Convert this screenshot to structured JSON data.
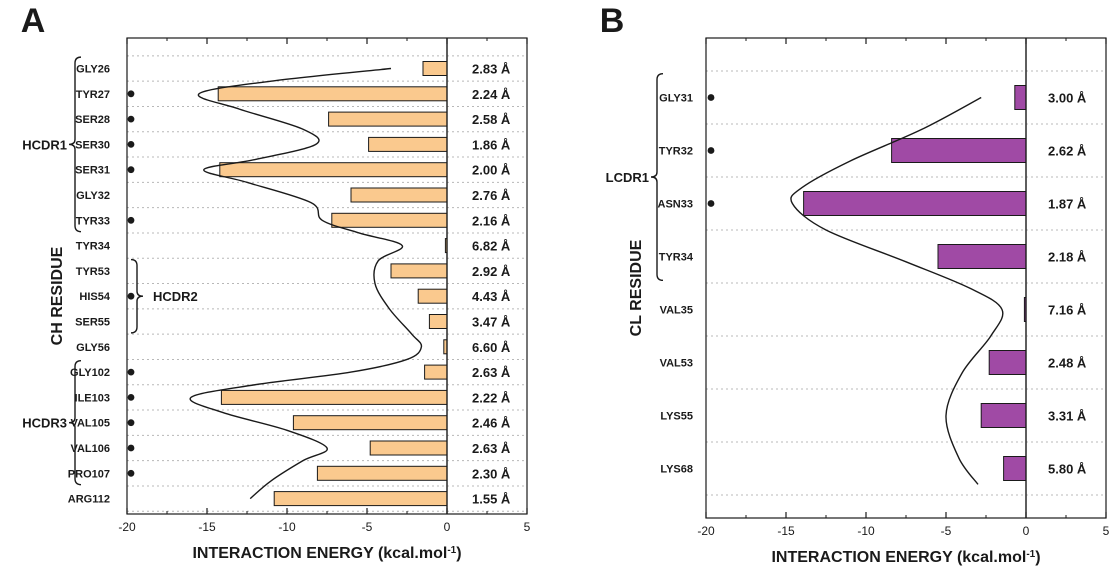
{
  "chart_data": [
    {
      "panel": "A",
      "type": "bar",
      "orientation": "horizontal",
      "xlabel": "INTERACTION ENERGY (kcal.mol",
      "xlabel_sup": "-1",
      "ylabel": "CH RESIDUE",
      "xlim": [
        -20,
        5
      ],
      "xticks": [
        "-20",
        "-15",
        "-10",
        "-5",
        "0",
        "5"
      ],
      "bar_color": "#FAC98E",
      "categories": [
        "GLY26",
        "TYR27",
        "SER28",
        "SER30",
        "SER31",
        "GLY32",
        "TYR33",
        "TYR34",
        "TYR53",
        "HIS54",
        "SER55",
        "GLY56",
        "GLY102",
        "ILE103",
        "VAL105",
        "VAL106",
        "PRO107",
        "ARG112"
      ],
      "values": [
        -1.5,
        -14.3,
        -7.4,
        -4.9,
        -14.2,
        -6.0,
        -7.2,
        -0.1,
        -3.5,
        -1.8,
        -1.1,
        -0.2,
        -1.4,
        -14.1,
        -9.6,
        -4.8,
        -8.1,
        -10.8
      ],
      "distances": [
        "2.83 Å",
        "2.24 Å",
        "2.58 Å",
        "1.86 Å",
        "2.00 Å",
        "2.76 Å",
        "2.16 Å",
        "6.82 Å",
        "2.92 Å",
        "4.43 Å",
        "3.47 Å",
        "6.60 Å",
        "2.63 Å",
        "2.22 Å",
        "2.46 Å",
        "2.63 Å",
        "2.30 Å",
        "1.55 Å"
      ],
      "marked": [
        false,
        true,
        true,
        true,
        true,
        false,
        true,
        false,
        false,
        true,
        false,
        false,
        true,
        true,
        true,
        true,
        true,
        false
      ],
      "regions": [
        {
          "label": "HCDR1",
          "from": 0,
          "to": 6,
          "side": "left"
        },
        {
          "label": "HCDR2",
          "from": 8,
          "to": 10,
          "side": "right"
        },
        {
          "label": "HCDR3",
          "from": 12,
          "to": 16,
          "side": "left"
        }
      ],
      "curve": [
        {
          "y": 0,
          "x": -3.5
        },
        {
          "y": 0.5,
          "x": -11
        },
        {
          "y": 1,
          "x": -15.5
        },
        {
          "y": 1.6,
          "x": -13
        },
        {
          "y": 2.4,
          "x": -9
        },
        {
          "y": 3,
          "x": -8.2
        },
        {
          "y": 3.6,
          "x": -12
        },
        {
          "y": 4,
          "x": -15.2
        },
        {
          "y": 4.5,
          "x": -12.5
        },
        {
          "y": 5.3,
          "x": -8.5
        },
        {
          "y": 6,
          "x": -7.8
        },
        {
          "y": 6.5,
          "x": -5.5
        },
        {
          "y": 7,
          "x": -2.8
        },
        {
          "y": 7.6,
          "x": -4.3
        },
        {
          "y": 8.5,
          "x": -4.5
        },
        {
          "y": 9.5,
          "x": -3.6
        },
        {
          "y": 10.5,
          "x": -2.2
        },
        {
          "y": 11,
          "x": -1.6
        },
        {
          "y": 11.5,
          "x": -2.5
        },
        {
          "y": 12,
          "x": -6
        },
        {
          "y": 12.5,
          "x": -12
        },
        {
          "y": 13,
          "x": -16
        },
        {
          "y": 13.6,
          "x": -14
        },
        {
          "y": 14.3,
          "x": -10
        },
        {
          "y": 15,
          "x": -7.5
        },
        {
          "y": 15.5,
          "x": -9
        },
        {
          "y": 16.3,
          "x": -11
        },
        {
          "y": 17,
          "x": -12.3
        }
      ]
    },
    {
      "panel": "B",
      "type": "bar",
      "orientation": "horizontal",
      "xlabel": "INTERACTION ENERGY (kcal.mol",
      "xlabel_sup": "-1",
      "ylabel": "CL RESIDUE",
      "xlim": [
        -20,
        5
      ],
      "xticks": [
        "-20",
        "-15",
        "-10",
        "-5",
        "0",
        "5"
      ],
      "bar_color": "#A04AA5",
      "categories": [
        "GLY31",
        "TYR32",
        "ASN33",
        "TYR34",
        "VAL35",
        "VAL53",
        "LYS55",
        "LYS68"
      ],
      "values": [
        -0.7,
        -8.4,
        -13.9,
        -5.5,
        -0.1,
        -2.3,
        -2.8,
        -1.4
      ],
      "distances": [
        "3.00 Å",
        "2.62 Å",
        "1.87 Å",
        "2.18 Å",
        "7.16 Å",
        "2.48 Å",
        "3.31 Å",
        "5.80 Å"
      ],
      "marked": [
        true,
        true,
        true,
        false,
        false,
        false,
        false,
        false
      ],
      "regions": [
        {
          "label": "LCDR1",
          "from": 0,
          "to": 3,
          "side": "left"
        }
      ],
      "curve": [
        {
          "y": 0,
          "x": -2.8
        },
        {
          "y": 0.6,
          "x": -6.5
        },
        {
          "y": 1.2,
          "x": -11
        },
        {
          "y": 1.7,
          "x": -14
        },
        {
          "y": 2,
          "x": -14.6
        },
        {
          "y": 2.5,
          "x": -12.5
        },
        {
          "y": 3.1,
          "x": -7.5
        },
        {
          "y": 3.6,
          "x": -3.5
        },
        {
          "y": 4,
          "x": -1.5
        },
        {
          "y": 4.5,
          "x": -2.2
        },
        {
          "y": 5.2,
          "x": -4
        },
        {
          "y": 6,
          "x": -5
        },
        {
          "y": 6.8,
          "x": -4.2
        },
        {
          "y": 7.3,
          "x": -3
        }
      ]
    }
  ],
  "panel_letters": [
    "A",
    "B"
  ]
}
